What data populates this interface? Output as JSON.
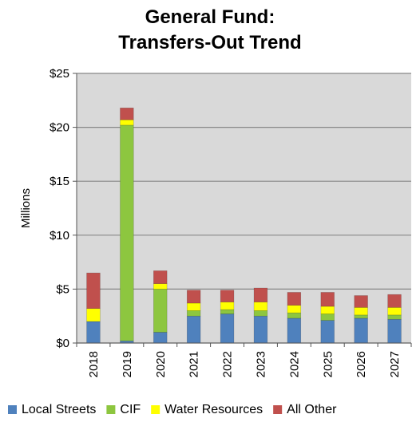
{
  "chart_data": {
    "type": "bar",
    "stacked": true,
    "title": "General Fund:",
    "subtitle": "Transfers-Out Trend",
    "ylabel": "Millions",
    "xlabel": "",
    "ylim": [
      0,
      25
    ],
    "yticks": [
      0,
      5,
      10,
      15,
      20,
      25
    ],
    "ytick_labels": [
      "$0",
      "$5",
      "$10",
      "$15",
      "$20",
      "$25"
    ],
    "grid": true,
    "legend_position": "bottom",
    "categories": [
      "2018",
      "2019",
      "2020",
      "2021",
      "2022",
      "2023",
      "2024",
      "2025",
      "2026",
      "2027"
    ],
    "series": [
      {
        "name": "Local Streets",
        "color": "#4f81bd",
        "values": [
          2.0,
          0.2,
          1.0,
          2.5,
          2.7,
          2.5,
          2.3,
          2.1,
          2.3,
          2.2
        ]
      },
      {
        "name": "CIF",
        "color": "#8dc63f",
        "values": [
          0.0,
          20.0,
          4.0,
          0.5,
          0.4,
          0.5,
          0.5,
          0.6,
          0.3,
          0.4
        ]
      },
      {
        "name": "Water Resources",
        "color": "#ffff00",
        "values": [
          1.2,
          0.5,
          0.5,
          0.7,
          0.7,
          0.8,
          0.7,
          0.7,
          0.7,
          0.7
        ]
      },
      {
        "name": "All Other",
        "color": "#c0504d",
        "values": [
          3.3,
          1.1,
          1.2,
          1.2,
          1.1,
          1.3,
          1.2,
          1.3,
          1.1,
          1.2
        ]
      }
    ]
  }
}
